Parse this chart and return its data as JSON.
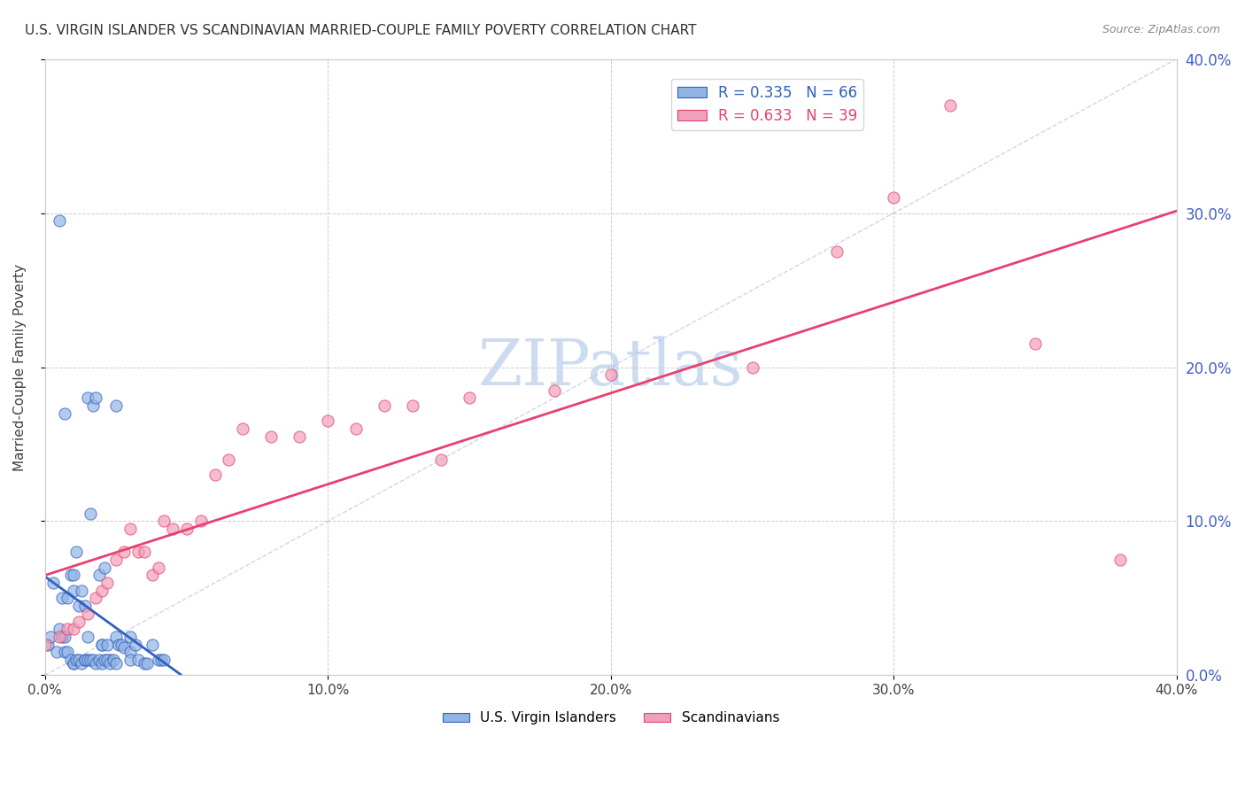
{
  "title": "U.S. VIRGIN ISLANDER VS SCANDINAVIAN MARRIED-COUPLE FAMILY POVERTY CORRELATION CHART",
  "source": "Source: ZipAtlas.com",
  "ylabel": "Married-Couple Family Poverty",
  "xlabel": "",
  "xmin": 0.0,
  "xmax": 0.4,
  "ymin": 0.0,
  "ymax": 0.4,
  "xticks": [
    0.0,
    0.1,
    0.2,
    0.3,
    0.4
  ],
  "yticks": [
    0.0,
    0.1,
    0.2,
    0.3,
    0.4
  ],
  "ytick_labels_right": [
    "0.0%",
    "10.0%",
    "20.0%",
    "30.0%",
    "40.0%"
  ],
  "xtick_labels": [
    "0.0%",
    "10.0%",
    "20.0%",
    "30.0%",
    "40.0%"
  ],
  "group1_label": "U.S. Virgin Islanders",
  "group2_label": "Scandinavians",
  "group1_R": 0.335,
  "group1_N": 66,
  "group2_R": 0.633,
  "group2_N": 39,
  "group1_color": "#92b4e3",
  "group2_color": "#f0a0b8",
  "group1_line_color": "#3060c0",
  "group2_line_color": "#e84070",
  "watermark": "ZIPatlas",
  "watermark_color": "#c8d8f0",
  "title_color": "#303030",
  "axis_label_color": "#4060a0",
  "tick_label_color_right": "#4060a0",
  "background_color": "#ffffff",
  "grid_color": "#cccccc",
  "group1_x": [
    0.005,
    0.006,
    0.007,
    0.008,
    0.009,
    0.01,
    0.01,
    0.011,
    0.012,
    0.013,
    0.014,
    0.015,
    0.015,
    0.016,
    0.017,
    0.018,
    0.019,
    0.02,
    0.02,
    0.021,
    0.022,
    0.023,
    0.025,
    0.025,
    0.026,
    0.027,
    0.028,
    0.03,
    0.03,
    0.032,
    0.001,
    0.002,
    0.003,
    0.004,
    0.005,
    0.006,
    0.007,
    0.007,
    0.008,
    0.009,
    0.01,
    0.01,
    0.011,
    0.012,
    0.013,
    0.014,
    0.014,
    0.015,
    0.016,
    0.017,
    0.018,
    0.019,
    0.02,
    0.021,
    0.022,
    0.023,
    0.024,
    0.025,
    0.03,
    0.033,
    0.035,
    0.036,
    0.038,
    0.04,
    0.041,
    0.042
  ],
  "group1_y": [
    0.295,
    0.05,
    0.17,
    0.05,
    0.065,
    0.065,
    0.055,
    0.08,
    0.045,
    0.055,
    0.045,
    0.18,
    0.025,
    0.105,
    0.175,
    0.18,
    0.065,
    0.02,
    0.02,
    0.07,
    0.02,
    0.01,
    0.175,
    0.025,
    0.02,
    0.02,
    0.018,
    0.025,
    0.015,
    0.02,
    0.02,
    0.025,
    0.06,
    0.015,
    0.03,
    0.025,
    0.025,
    0.015,
    0.015,
    0.01,
    0.008,
    0.008,
    0.01,
    0.01,
    0.008,
    0.01,
    0.01,
    0.01,
    0.01,
    0.01,
    0.008,
    0.01,
    0.008,
    0.01,
    0.01,
    0.008,
    0.01,
    0.008,
    0.01,
    0.01,
    0.008,
    0.008,
    0.02,
    0.01,
    0.01,
    0.01
  ],
  "group2_x": [
    0.0,
    0.005,
    0.008,
    0.01,
    0.012,
    0.015,
    0.018,
    0.02,
    0.022,
    0.025,
    0.028,
    0.03,
    0.033,
    0.035,
    0.038,
    0.04,
    0.042,
    0.045,
    0.05,
    0.055,
    0.06,
    0.065,
    0.07,
    0.08,
    0.09,
    0.1,
    0.11,
    0.12,
    0.13,
    0.14,
    0.15,
    0.18,
    0.2,
    0.25,
    0.28,
    0.3,
    0.32,
    0.35,
    0.38
  ],
  "group2_y": [
    0.02,
    0.025,
    0.03,
    0.03,
    0.035,
    0.04,
    0.05,
    0.055,
    0.06,
    0.075,
    0.08,
    0.095,
    0.08,
    0.08,
    0.065,
    0.07,
    0.1,
    0.095,
    0.095,
    0.1,
    0.13,
    0.14,
    0.16,
    0.155,
    0.155,
    0.165,
    0.16,
    0.175,
    0.175,
    0.14,
    0.18,
    0.185,
    0.195,
    0.2,
    0.275,
    0.31,
    0.37,
    0.215,
    0.075
  ]
}
